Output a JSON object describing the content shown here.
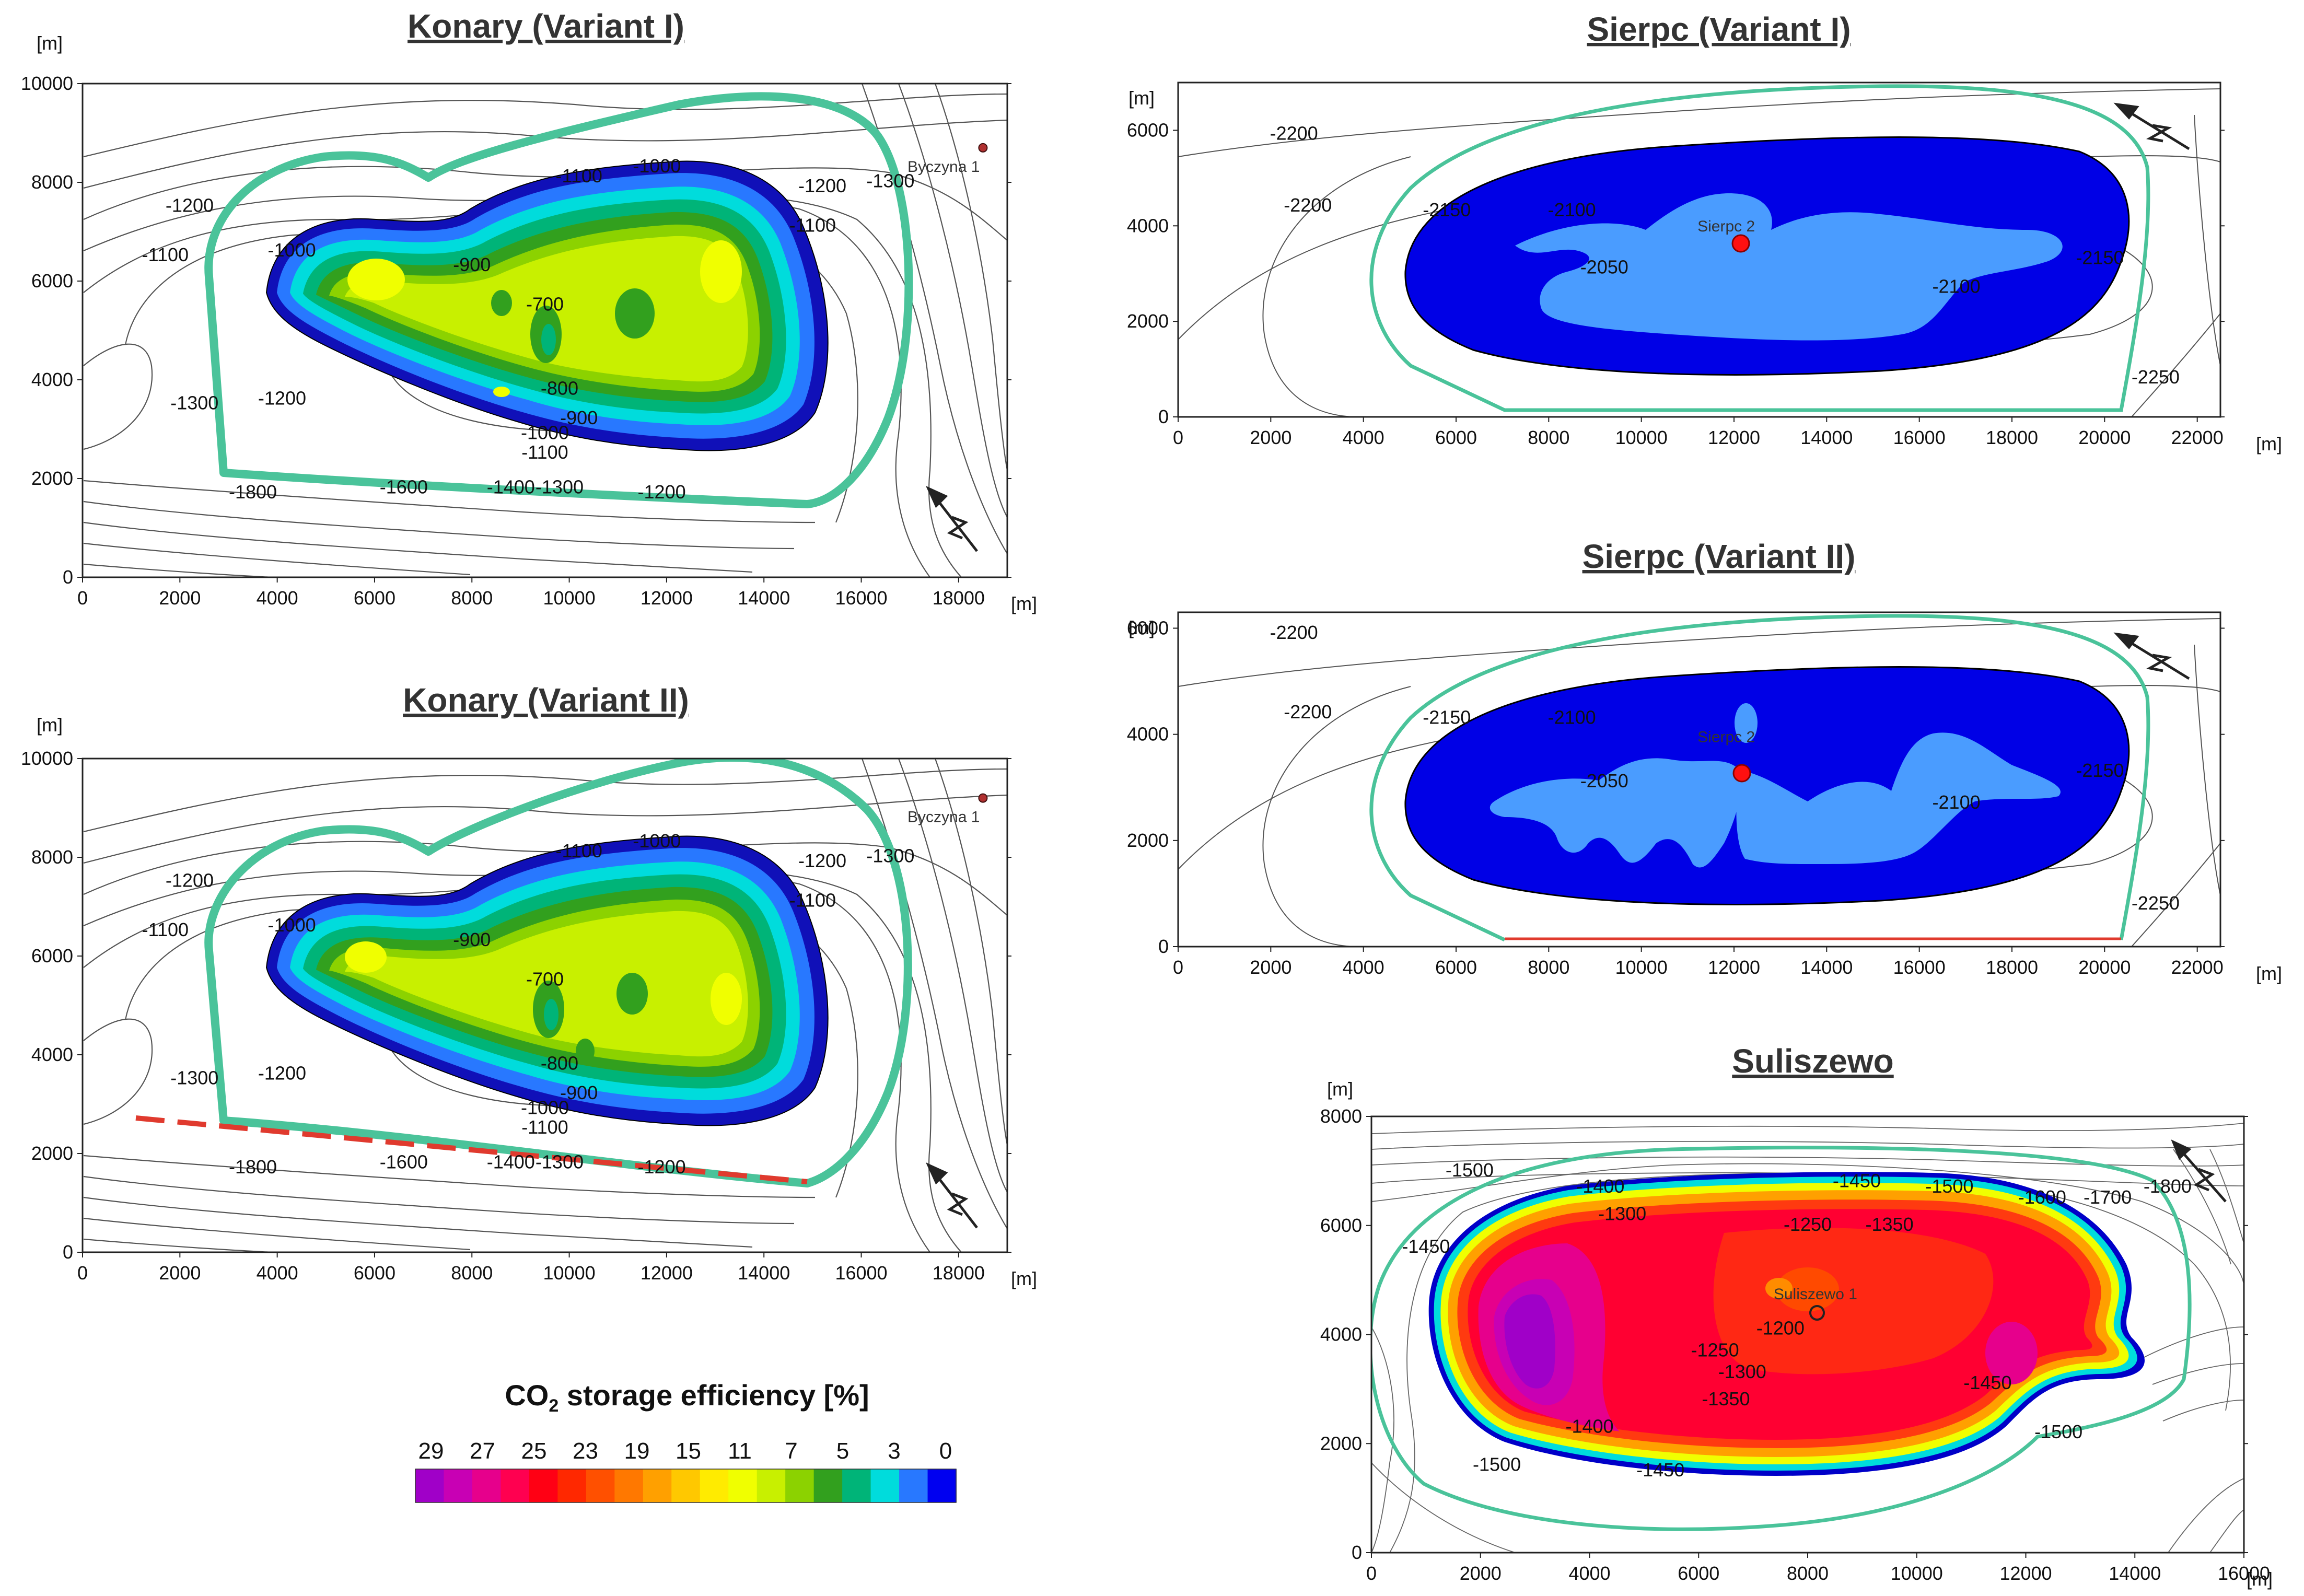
{
  "chart_data": [
    {
      "id": "konary1",
      "type": "heatmap",
      "title": "Konary (Variant I)",
      "x_unit": "[m]",
      "y_unit": "[m]",
      "xlim": [
        0,
        19000
      ],
      "ylim": [
        0,
        10000
      ],
      "x_ticks": [
        "0",
        "2000",
        "4000",
        "6000",
        "8000",
        "10000",
        "12000",
        "14000",
        "16000",
        "18000"
      ],
      "y_ticks": [
        "0",
        "2000",
        "4000",
        "6000",
        "8000",
        "10000"
      ],
      "contour_labels": [
        {
          "text": "-1100",
          "x": 1700,
          "y": 6400
        },
        {
          "text": "-1200",
          "x": 2200,
          "y": 7400
        },
        {
          "text": "-1000",
          "x": 4300,
          "y": 6500
        },
        {
          "text": "-900",
          "x": 8000,
          "y": 6200
        },
        {
          "text": "-700",
          "x": 9500,
          "y": 5400
        },
        {
          "text": "-800",
          "x": 9800,
          "y": 3700
        },
        {
          "text": "-900",
          "x": 10200,
          "y": 3100
        },
        {
          "text": "-1000",
          "x": 9500,
          "y": 2800
        },
        {
          "text": "-1100",
          "x": 9500,
          "y": 2400
        },
        {
          "text": "-1100",
          "x": 10200,
          "y": 8000
        },
        {
          "text": "-1000",
          "x": 11800,
          "y": 8200
        },
        {
          "text": "-1200",
          "x": 15200,
          "y": 7800
        },
        {
          "text": "-1100",
          "x": 15000,
          "y": 7000
        },
        {
          "text": "-1300",
          "x": 16600,
          "y": 7900
        },
        {
          "text": "-1300",
          "x": 2300,
          "y": 3400
        },
        {
          "text": "-1200",
          "x": 4100,
          "y": 3500
        },
        {
          "text": "-1800",
          "x": 3500,
          "y": 1600
        },
        {
          "text": "-1600",
          "x": 6600,
          "y": 1700
        },
        {
          "text": "-1400",
          "x": 8800,
          "y": 1700
        },
        {
          "text": "-1300",
          "x": 9800,
          "y": 1700
        },
        {
          "text": "-1200",
          "x": 11900,
          "y": 1600
        }
      ],
      "wells": [
        {
          "name": "Byczyna 1",
          "x": 18500,
          "y": 8700
        }
      ]
    },
    {
      "id": "konary2",
      "type": "heatmap",
      "title": "Konary (Variant II)",
      "x_unit": "[m]",
      "y_unit": "[m]",
      "xlim": [
        0,
        19000
      ],
      "ylim": [
        0,
        10000
      ],
      "x_ticks": [
        "0",
        "2000",
        "4000",
        "6000",
        "8000",
        "10000",
        "12000",
        "14000",
        "16000",
        "18000"
      ],
      "y_ticks": [
        "0",
        "2000",
        "4000",
        "6000",
        "8000",
        "10000"
      ],
      "contour_labels": [
        {
          "text": "-1100",
          "x": 1700,
          "y": 6400
        },
        {
          "text": "-1200",
          "x": 2200,
          "y": 7400
        },
        {
          "text": "-1000",
          "x": 4300,
          "y": 6500
        },
        {
          "text": "-900",
          "x": 8000,
          "y": 6200
        },
        {
          "text": "-700",
          "x": 9500,
          "y": 5400
        },
        {
          "text": "-800",
          "x": 9800,
          "y": 3700
        },
        {
          "text": "-900",
          "x": 10200,
          "y": 3100
        },
        {
          "text": "-1000",
          "x": 9500,
          "y": 2800
        },
        {
          "text": "-1100",
          "x": 9500,
          "y": 2400
        },
        {
          "text": "-1100",
          "x": 10200,
          "y": 8000
        },
        {
          "text": "-1000",
          "x": 11800,
          "y": 8200
        },
        {
          "text": "-1200",
          "x": 15200,
          "y": 7800
        },
        {
          "text": "-1100",
          "x": 15000,
          "y": 7000
        },
        {
          "text": "-1300",
          "x": 16600,
          "y": 7900
        },
        {
          "text": "-1300",
          "x": 2300,
          "y": 3400
        },
        {
          "text": "-1200",
          "x": 4100,
          "y": 3500
        },
        {
          "text": "-1800",
          "x": 3500,
          "y": 1600
        },
        {
          "text": "-1600",
          "x": 6600,
          "y": 1700
        },
        {
          "text": "-1400",
          "x": 8800,
          "y": 1700
        },
        {
          "text": "-1300",
          "x": 9800,
          "y": 1700
        },
        {
          "text": "-1200",
          "x": 11900,
          "y": 1600
        }
      ],
      "wells": [
        {
          "name": "Byczyna 1",
          "x": 18500,
          "y": 9200
        }
      ]
    },
    {
      "id": "sierpc1",
      "type": "heatmap",
      "title": "Sierpc (Variant I)",
      "x_unit": "[m]",
      "y_unit": "[m]",
      "xlim": [
        0,
        22500
      ],
      "ylim": [
        0,
        7000
      ],
      "x_ticks": [
        "0",
        "2000",
        "4000",
        "6000",
        "8000",
        "10000",
        "12000",
        "14000",
        "16000",
        "18000",
        "20000",
        "22000"
      ],
      "y_ticks": [
        "0",
        "2000",
        "4000",
        "6000"
      ],
      "contour_labels": [
        {
          "text": "-2200",
          "x": 2500,
          "y": 5800
        },
        {
          "text": "-2200",
          "x": 2800,
          "y": 4300
        },
        {
          "text": "-2150",
          "x": 5800,
          "y": 4200
        },
        {
          "text": "-2100",
          "x": 8500,
          "y": 4200
        },
        {
          "text": "-2050",
          "x": 9200,
          "y": 3000
        },
        {
          "text": "-2100",
          "x": 16800,
          "y": 2600
        },
        {
          "text": "-2150",
          "x": 19900,
          "y": 3200
        },
        {
          "text": "-2250",
          "x": 21100,
          "y": 700
        }
      ],
      "wells": [
        {
          "name": "Sierpc 2",
          "x": 11900,
          "y": 3600
        }
      ]
    },
    {
      "id": "sierpc2",
      "type": "heatmap",
      "title": "Sierpc (Variant II)",
      "x_unit": "[m]",
      "y_unit": "[m]",
      "xlim": [
        0,
        22500
      ],
      "ylim": [
        0,
        6300
      ],
      "x_ticks": [
        "0",
        "2000",
        "4000",
        "6000",
        "8000",
        "10000",
        "12000",
        "14000",
        "16000",
        "18000",
        "20000",
        "22000"
      ],
      "y_ticks": [
        "0",
        "2000",
        "4000",
        "6000"
      ],
      "contour_labels": [
        {
          "text": "-2200",
          "x": 2500,
          "y": 5800
        },
        {
          "text": "-2200",
          "x": 2800,
          "y": 4300
        },
        {
          "text": "-2150",
          "x": 5800,
          "y": 4200
        },
        {
          "text": "-2100",
          "x": 8500,
          "y": 4200
        },
        {
          "text": "-2050",
          "x": 9200,
          "y": 3000
        },
        {
          "text": "-2100",
          "x": 16800,
          "y": 2600
        },
        {
          "text": "-2150",
          "x": 19900,
          "y": 3200
        },
        {
          "text": "-2250",
          "x": 21100,
          "y": 700
        }
      ],
      "wells": [
        {
          "name": "Sierpc 2",
          "x": 11900,
          "y": 3600
        }
      ]
    },
    {
      "id": "suliszewo",
      "type": "heatmap",
      "title": "Suliszewo",
      "x_unit": "[m]",
      "y_unit": "[m]",
      "xlim": [
        0,
        16000
      ],
      "ylim": [
        0,
        8000
      ],
      "x_ticks": [
        "0",
        "2000",
        "4000",
        "6000",
        "8000",
        "10000",
        "12000",
        "14000",
        "16000"
      ],
      "y_ticks": [
        "0",
        "2000",
        "4000",
        "6000",
        "8000"
      ],
      "contour_labels": [
        {
          "text": "-1500",
          "x": 1800,
          "y": 6900
        },
        {
          "text": "-1450",
          "x": 1000,
          "y": 5500
        },
        {
          "text": "-1400",
          "x": 4200,
          "y": 6600
        },
        {
          "text": "-1300",
          "x": 4600,
          "y": 6100
        },
        {
          "text": "-1250",
          "x": 8000,
          "y": 5900
        },
        {
          "text": "-1350",
          "x": 9500,
          "y": 5900
        },
        {
          "text": "-1450",
          "x": 8900,
          "y": 6700
        },
        {
          "text": "-1500",
          "x": 10600,
          "y": 6600
        },
        {
          "text": "-1600",
          "x": 12300,
          "y": 6400
        },
        {
          "text": "-1700",
          "x": 13500,
          "y": 6400
        },
        {
          "text": "-1800",
          "x": 14600,
          "y": 6600
        },
        {
          "text": "-1200",
          "x": 7500,
          "y": 4000
        },
        {
          "text": "-1250",
          "x": 6300,
          "y": 3600
        },
        {
          "text": "-1300",
          "x": 6800,
          "y": 3200
        },
        {
          "text": "-1350",
          "x": 6500,
          "y": 2700
        },
        {
          "text": "-1400",
          "x": 4000,
          "y": 2200
        },
        {
          "text": "-1450",
          "x": 5300,
          "y": 1400
        },
        {
          "text": "-1450",
          "x": 11300,
          "y": 3000
        },
        {
          "text": "-1500",
          "x": 12600,
          "y": 2100
        },
        {
          "text": "-1500",
          "x": 2300,
          "y": 1500
        }
      ],
      "wells": [
        {
          "name": "Suliszewo 1",
          "x": 8200,
          "y": 4400
        }
      ]
    }
  ],
  "legend": {
    "title_pre": "CO",
    "title_sub": "2",
    "title_post": " storage efficiency [%]",
    "ticks": [
      "29",
      "27",
      "25",
      "23",
      "19",
      "15",
      "11",
      "7",
      "5",
      "3",
      "0"
    ],
    "colors": [
      "#a000c8",
      "#c800b4",
      "#e6008c",
      "#ff0050",
      "#ff0014",
      "#ff2800",
      "#ff5000",
      "#ff7800",
      "#ffa000",
      "#ffc800",
      "#ffeb00",
      "#f0ff00",
      "#c8f000",
      "#8cd200",
      "#32a01e",
      "#00b478",
      "#00dcdc",
      "#2878ff",
      "#0000f0"
    ]
  }
}
